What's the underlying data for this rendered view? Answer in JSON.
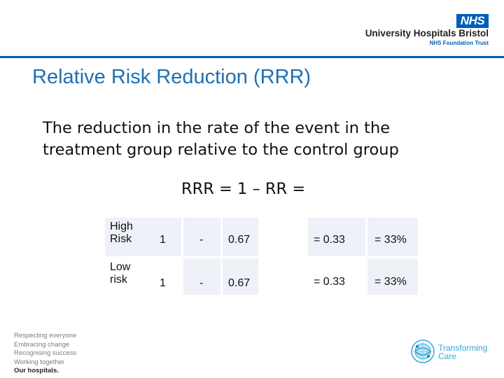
{
  "header": {
    "nhs_logo": "NHS",
    "org_name": "University Hospitals Bristol",
    "org_subtitle": "NHS Foundation Trust",
    "brand_color": "#005eb8"
  },
  "slide": {
    "title": "Relative Risk Reduction (RRR)",
    "definition": "The reduction in the rate of the event in the treatment group relative to the control group",
    "formula": "RRR = 1 – RR ="
  },
  "table": {
    "rows": [
      {
        "label": "High\nRisk",
        "one": "1",
        "minus": "-",
        "rr": "0.67",
        "eq_result": "=  0.33",
        "percent": "= 33%"
      },
      {
        "label": "Low\nrisk",
        "one": "1",
        "minus": "-",
        "rr": "0.67",
        "eq_result": "=  0.33",
        "percent": "= 33%"
      }
    ]
  },
  "footer": {
    "values": [
      "Respecting everyone",
      "Embracing change",
      "Recognising success",
      "Working together",
      "Our hospitals."
    ],
    "transforming_care": [
      "Transforming",
      "Care"
    ],
    "icon": "globe-icon"
  }
}
